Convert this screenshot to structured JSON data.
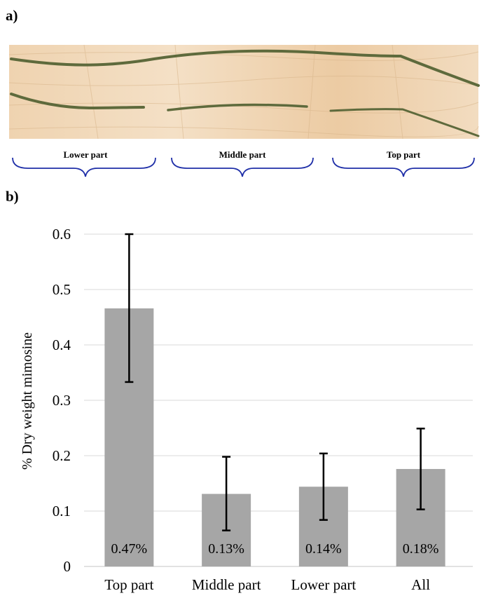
{
  "panel_a": {
    "label": "a)",
    "parts": [
      "Lower part",
      "Middle part",
      "Top part"
    ]
  },
  "panel_b": {
    "label": "b)"
  },
  "colors": {
    "bar": "#a6a6a6",
    "grid": "#d9d9d9",
    "bracket": "#1f2fa8",
    "wood_light": "#f2dcc0",
    "wood_dark": "#e6c49c",
    "stem": "#5e6a3c"
  },
  "chart_data": {
    "type": "bar",
    "categories": [
      "Top part",
      "Middle part",
      "Lower part",
      "All"
    ],
    "values": [
      0.466,
      0.131,
      0.144,
      0.176
    ],
    "error_upper": [
      0.6,
      0.198,
      0.204,
      0.249
    ],
    "error_lower": [
      0.333,
      0.065,
      0.084,
      0.103
    ],
    "data_labels": [
      "0.47%",
      "0.13%",
      "0.14%",
      "0.18%"
    ],
    "ylabel": "% Dry weight mimosine",
    "xlabel": "",
    "ylim": [
      0,
      0.6
    ],
    "yticks": [
      0,
      0.1,
      0.2,
      0.3,
      0.4,
      0.5,
      0.6
    ],
    "ytick_labels": [
      "0",
      "0.1",
      "0.2",
      "0.3",
      "0.4",
      "0.5",
      "0.6"
    ],
    "grid": true
  }
}
